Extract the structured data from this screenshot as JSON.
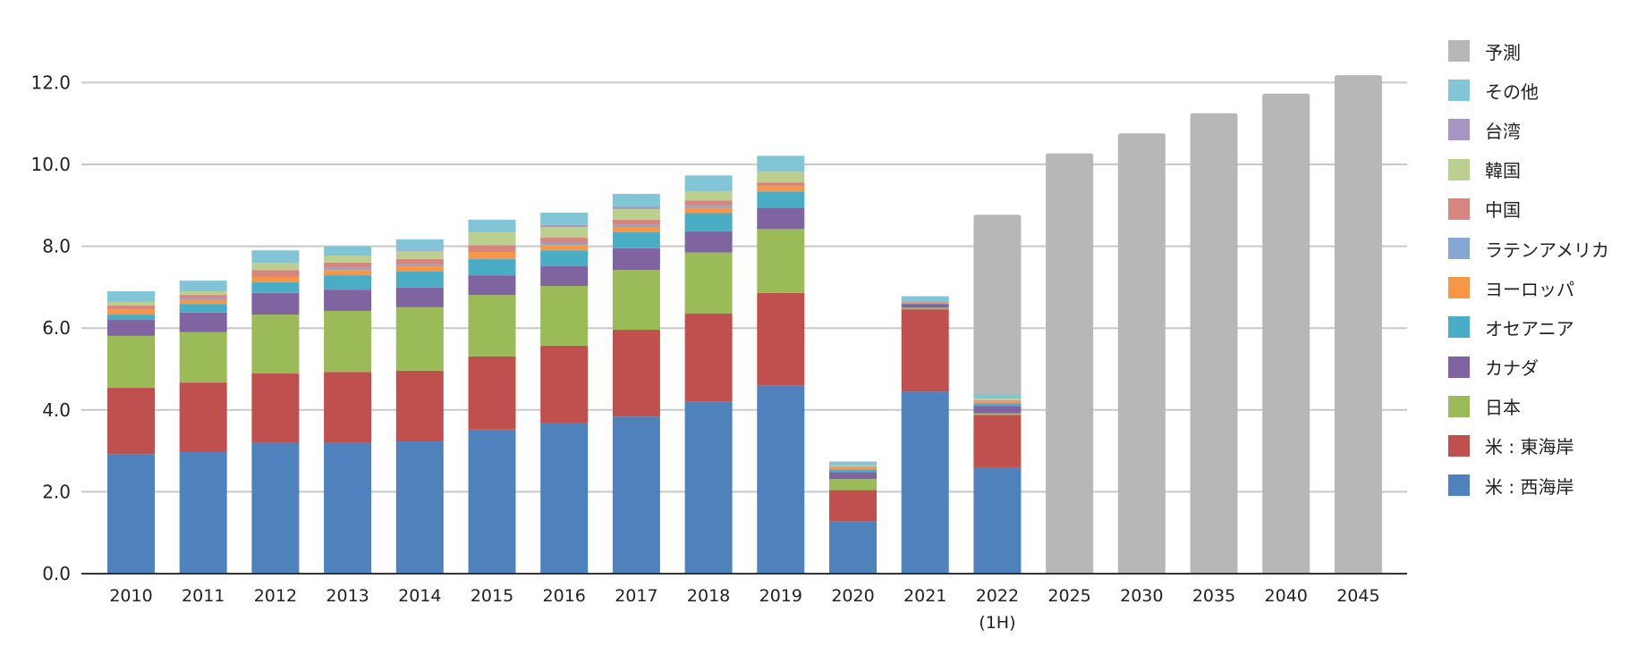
{
  "chart_data": {
    "type": "bar",
    "stacked": true,
    "categories": [
      "2010",
      "2011",
      "2012",
      "2013",
      "2014",
      "2015",
      "2016",
      "2017",
      "2018",
      "2019",
      "2020",
      "2021",
      "2022\n(1H)",
      "2025",
      "2030",
      "2035",
      "2040",
      "2045"
    ],
    "ylim": [
      0,
      12
    ],
    "yticks": [
      "0.0",
      "2.0",
      "4.0",
      "6.0",
      "8.0",
      "10.0",
      "12.0"
    ],
    "grid": true,
    "legend_position": "right",
    "xlabel": "",
    "ylabel": "",
    "series": [
      {
        "name": "米 : 西海岸",
        "color": "#4F81BD",
        "values": [
          2.92,
          2.97,
          3.19,
          3.19,
          3.23,
          3.52,
          3.68,
          3.84,
          4.2,
          4.6,
          1.28,
          4.45,
          2.6,
          null,
          null,
          null,
          null,
          null
        ]
      },
      {
        "name": "米 : 東海岸",
        "color": "#C0504D",
        "values": [
          1.62,
          1.7,
          1.7,
          1.74,
          1.73,
          1.79,
          1.89,
          2.12,
          2.16,
          2.26,
          0.76,
          2.01,
          1.28,
          null,
          null,
          null,
          null,
          null
        ]
      },
      {
        "name": "日本",
        "color": "#9BBB59",
        "values": [
          1.27,
          1.23,
          1.44,
          1.49,
          1.55,
          1.5,
          1.46,
          1.46,
          1.49,
          1.56,
          0.27,
          0.04,
          0.04,
          null,
          null,
          null,
          null,
          null
        ]
      },
      {
        "name": "カナダ",
        "color": "#8064A2",
        "values": [
          0.39,
          0.48,
          0.53,
          0.52,
          0.48,
          0.48,
          0.48,
          0.53,
          0.52,
          0.52,
          0.17,
          0.09,
          0.18,
          null,
          null,
          null,
          null,
          null
        ]
      },
      {
        "name": "オセアニア",
        "color": "#4BACC6",
        "values": [
          0.13,
          0.21,
          0.26,
          0.35,
          0.39,
          0.4,
          0.39,
          0.39,
          0.44,
          0.4,
          0.07,
          0.02,
          0.06,
          null,
          null,
          null,
          null,
          null
        ]
      },
      {
        "name": "ヨーロッパ",
        "color": "#F79646",
        "values": [
          0.13,
          0.09,
          0.13,
          0.13,
          0.13,
          0.17,
          0.13,
          0.13,
          0.13,
          0.13,
          0.04,
          0.02,
          0.04,
          null,
          null,
          null,
          null,
          null
        ]
      },
      {
        "name": "ラテンアメリカ",
        "color": "#86A7D4",
        "values": [
          0,
          0.04,
          0,
          0.05,
          0.04,
          0,
          0.05,
          0.05,
          0.05,
          0,
          0,
          0,
          0.02,
          null,
          null,
          null,
          null,
          null
        ]
      },
      {
        "name": "中国",
        "color": "#D6867F",
        "values": [
          0.09,
          0.09,
          0.17,
          0.13,
          0.14,
          0.17,
          0.13,
          0.13,
          0.13,
          0.09,
          0.02,
          0,
          0.02,
          null,
          null,
          null,
          null,
          null
        ]
      },
      {
        "name": "韓国",
        "color": "#BBD08E",
        "values": [
          0.09,
          0.09,
          0.17,
          0.17,
          0.19,
          0.31,
          0.26,
          0.26,
          0.22,
          0.26,
          0.04,
          0,
          0.04,
          null,
          null,
          null,
          null,
          null
        ]
      },
      {
        "name": "台湾",
        "color": "#A695C2",
        "values": [
          0,
          0,
          0,
          0,
          0.02,
          0,
          0.05,
          0.06,
          0,
          0,
          0,
          0.02,
          0,
          null,
          null,
          null,
          null,
          null
        ]
      },
      {
        "name": "その他",
        "color": "#82C5D6",
        "values": [
          0.26,
          0.26,
          0.31,
          0.23,
          0.27,
          0.31,
          0.3,
          0.31,
          0.39,
          0.39,
          0.09,
          0.13,
          0.11,
          null,
          null,
          null,
          null,
          null
        ]
      },
      {
        "name": "予測",
        "color": "#B7B7B7",
        "values": [
          null,
          null,
          null,
          null,
          null,
          null,
          null,
          null,
          null,
          null,
          null,
          null,
          4.38,
          10.27,
          10.76,
          11.25,
          11.73,
          12.18
        ]
      }
    ]
  },
  "legend_order": [
    11,
    10,
    9,
    8,
    7,
    6,
    5,
    4,
    3,
    2,
    1,
    0
  ]
}
